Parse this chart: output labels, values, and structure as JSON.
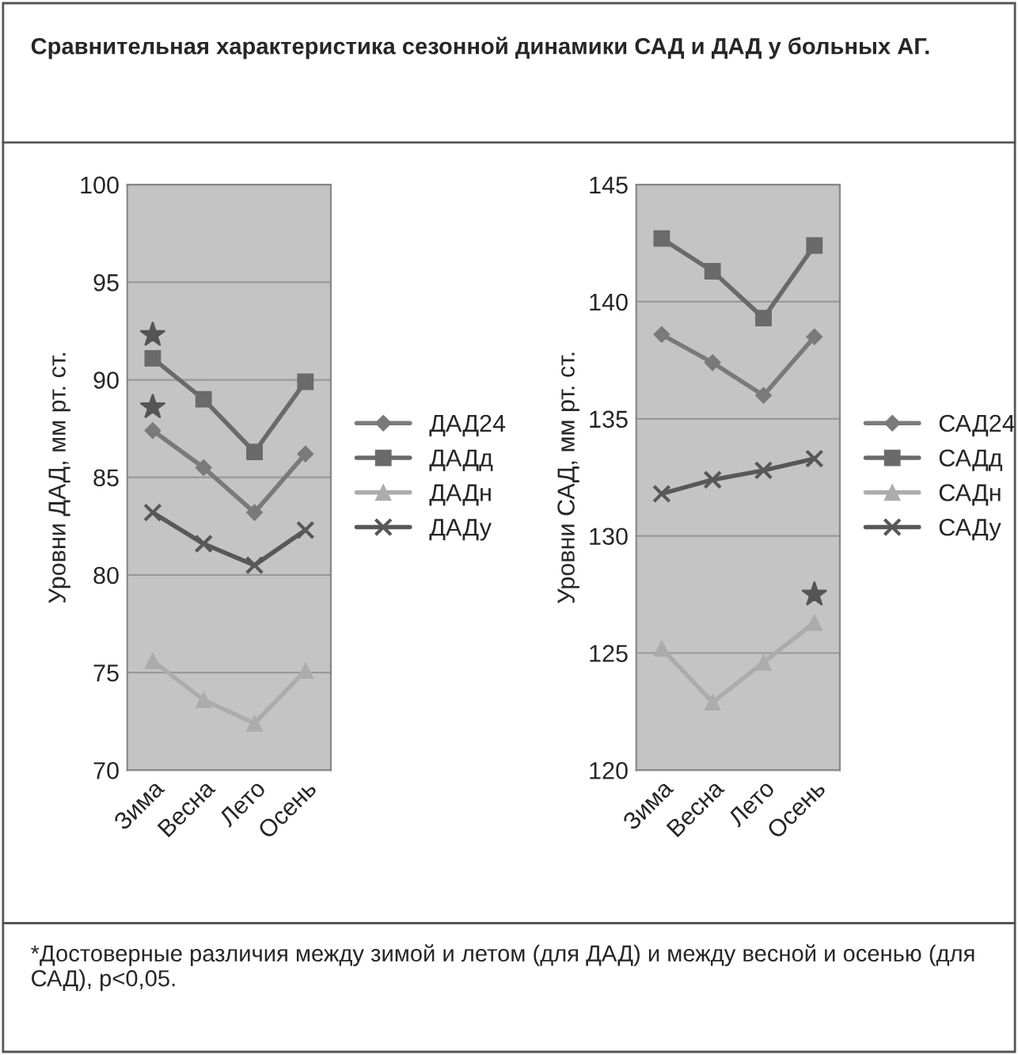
{
  "chart_data": [
    {
      "type": "line",
      "title": "Сравнительная характеристика сезонной динамики САД и ДАД у больных АГ.",
      "ylabel": "Уровни ДАД, мм рт. ст.",
      "categories": [
        "Зима",
        "Весна",
        "Лето",
        "Осень"
      ],
      "ylim": [
        70,
        100
      ],
      "yticks": [
        70,
        75,
        80,
        85,
        90,
        95,
        100
      ],
      "grid": "y",
      "legend": "right",
      "series": [
        {
          "name": "ДАД24",
          "color": "#7a7a7a",
          "marker": "diamond",
          "values": [
            87.4,
            85.5,
            83.2,
            86.2
          ]
        },
        {
          "name": "ДАДд",
          "color": "#6a6a6a",
          "marker": "square",
          "values": [
            91.1,
            89.0,
            86.3,
            89.9
          ]
        },
        {
          "name": "ДАДн",
          "color": "#acacac",
          "marker": "triangle",
          "values": [
            75.6,
            73.6,
            72.4,
            75.1
          ]
        },
        {
          "name": "ДАДу",
          "color": "#585858",
          "marker": "cross",
          "values": [
            83.2,
            81.6,
            80.5,
            82.3
          ]
        },
        {
          "type": "scatter",
          "color": "#555555",
          "marker": "star",
          "x": [
            "Зима",
            "Зима"
          ],
          "values": [
            92.3,
            88.6
          ]
        }
      ]
    },
    {
      "type": "line",
      "ylabel": "Уровни САД, мм рт. ст.",
      "categories": [
        "Зима",
        "Весна",
        "Лето",
        "Осень"
      ],
      "ylim": [
        120,
        145
      ],
      "yticks": [
        120,
        125,
        130,
        135,
        140,
        145
      ],
      "grid": "y",
      "legend": "right",
      "annotations": [
        "*Достоверные различия между зимой и летом (для ДАД) и между весной и осенью (для САД), p<0,05."
      ],
      "series": [
        {
          "name": "САД24",
          "color": "#7a7a7a",
          "marker": "diamond",
          "values": [
            138.6,
            137.4,
            136.0,
            138.5
          ]
        },
        {
          "name": "САДд",
          "color": "#6a6a6a",
          "marker": "square",
          "values": [
            142.7,
            141.3,
            139.3,
            142.4
          ]
        },
        {
          "name": "САДн",
          "color": "#acacac",
          "marker": "triangle",
          "values": [
            125.2,
            122.9,
            124.6,
            126.3
          ]
        },
        {
          "name": "САДу",
          "color": "#585858",
          "marker": "cross",
          "values": [
            131.8,
            132.4,
            132.8,
            133.3
          ]
        },
        {
          "type": "scatter",
          "color": "#555555",
          "marker": "star",
          "x": [
            "Осень"
          ],
          "values": [
            127.5
          ]
        }
      ]
    }
  ]
}
